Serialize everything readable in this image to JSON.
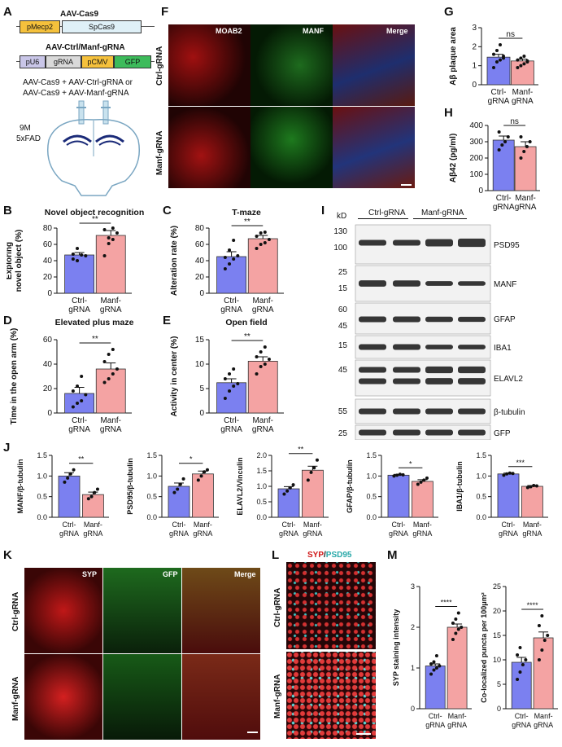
{
  "panel_letters": {
    "A": "A",
    "B": "B",
    "C": "C",
    "D": "D",
    "E": "E",
    "F": "F",
    "G": "G",
    "H": "H",
    "I": "I",
    "J": "J",
    "K": "K",
    "L": "L",
    "M": "M"
  },
  "panel_a": {
    "cas9_title": "AAV-Cas9",
    "promoter1": "pMecp2",
    "gene1": "SpCas9",
    "grna_title": "AAV-Ctrl/Manf-gRNA",
    "pu6": "pU6",
    "grna": "gRNA",
    "pcmv": "pCMV",
    "gfp": "GFP",
    "injection_line1": "AAV-Cas9 + AAV-Ctrl-gRNA or",
    "injection_line2": "AAV-Cas9 + AAV-Manf-gRNA",
    "age": "9M",
    "model": "5xFAD"
  },
  "groups": {
    "ctrl": [
      "Ctrl-",
      "gRNA"
    ],
    "manf": [
      "Manf-",
      "gRNA"
    ]
  },
  "colors": {
    "ctrl": "#7b80f0",
    "manf": "#f4a3a3"
  },
  "panel_f": {
    "ch1": "MOAB2",
    "ch2": "MANF",
    "ch3": "Merge",
    "row1": "Ctrl-gRNA",
    "row2": "Manf-gRNA"
  },
  "panel_i": {
    "kd": "kD",
    "ctrl": "Ctrl-gRNA",
    "manf": "Manf-gRNA",
    "markers": [
      "130",
      "100",
      "25",
      "15",
      "60",
      "45",
      "15",
      "45",
      "55",
      "25"
    ],
    "proteins": [
      "PSD95",
      "MANF",
      "GFAP",
      "IBA1",
      "ELAVL2",
      "β-tubulin",
      "GFP"
    ]
  },
  "panel_k": {
    "ch1": "SYP",
    "ch2": "GFP",
    "ch3": "Merge",
    "row1": "Ctrl-gRNA",
    "row2": "Manf-gRNA"
  },
  "panel_l": {
    "ch1": "SYP",
    "sep": "/",
    "ch2": "PSD95",
    "row1": "Ctrl-gRNA",
    "row2": "Manf-gRNA"
  },
  "chart_data": [
    {
      "id": "B",
      "type": "bar",
      "title": "Novel object recognition",
      "ylabel": "Exploring novel object (%)",
      "ylim": [
        0,
        80
      ],
      "ticks": [
        0,
        20,
        40,
        60,
        80
      ],
      "values": [
        47,
        71
      ],
      "sem": [
        3,
        6
      ],
      "sig": "**",
      "points": [
        [
          42,
          40,
          47,
          46,
          48,
          55
        ],
        [
          46,
          61,
          66,
          74,
          78,
          68,
          80
        ]
      ]
    },
    {
      "id": "C",
      "type": "bar",
      "title": "T-maze",
      "ylabel": "Alteration rate (%)",
      "ylim": [
        0,
        80
      ],
      "ticks": [
        0,
        20,
        40,
        60,
        80
      ],
      "values": [
        45,
        67
      ],
      "sem": [
        6,
        4
      ],
      "sig": "**",
      "points": [
        [
          30,
          36,
          42,
          46,
          44,
          53,
          65
        ],
        [
          55,
          60,
          62,
          66,
          70,
          74,
          75
        ]
      ]
    },
    {
      "id": "D",
      "type": "bar",
      "title": "Elevated plus maze",
      "ylabel": "Time in the open arm (%)",
      "ylim": [
        0,
        60
      ],
      "ticks": [
        0,
        20,
        40,
        60
      ],
      "values": [
        16,
        36
      ],
      "sem": [
        5,
        5
      ],
      "sig": "**",
      "points": [
        [
          5,
          8,
          10,
          15,
          18,
          22,
          30
        ],
        [
          25,
          28,
          32,
          36,
          42,
          48,
          52
        ]
      ]
    },
    {
      "id": "E",
      "type": "bar",
      "title": "Open field",
      "ylabel": "Activity in center (%)",
      "ylim": [
        0,
        15
      ],
      "ticks": [
        0,
        5,
        10,
        15
      ],
      "values": [
        6.2,
        10.6
      ],
      "sem": [
        0.8,
        0.9
      ],
      "sig": "**",
      "points": [
        [
          3,
          4.5,
          5.5,
          6,
          7,
          8,
          9
        ],
        [
          8,
          9.5,
          10,
          11,
          11.5,
          12.5,
          13.5
        ]
      ]
    },
    {
      "id": "G",
      "type": "bar",
      "title": "",
      "ylabel": "Aβ plaque area",
      "ylim": [
        0,
        3
      ],
      "ticks": [
        0,
        1,
        2,
        3
      ],
      "values": [
        1.45,
        1.25
      ],
      "sem": [
        0.15,
        0.1
      ],
      "sig": "ns",
      "points": [
        [
          0.9,
          1.2,
          1.3,
          1.5,
          1.6,
          1.8,
          2.1,
          1.4
        ],
        [
          0.9,
          1.0,
          1.1,
          1.2,
          1.3,
          1.4,
          1.5,
          1.25
        ]
      ]
    },
    {
      "id": "H",
      "type": "bar",
      "title": "",
      "ylabel": "Aβ42 (pg/ml)",
      "ylim": [
        0,
        400
      ],
      "ticks": [
        0,
        100,
        200,
        300,
        400
      ],
      "values": [
        310,
        270
      ],
      "sem": [
        25,
        30
      ],
      "sig": "ns",
      "points": [
        [
          250,
          280,
          300,
          330,
          360
        ],
        [
          200,
          240,
          270,
          300,
          330
        ]
      ]
    },
    {
      "id": "J1",
      "type": "bar",
      "title": "",
      "ylabel": "MANF/β-tubulin",
      "ylim": [
        0,
        1.5
      ],
      "ticks": [
        0,
        0.5,
        1.0,
        1.5
      ],
      "values": [
        1.0,
        0.55
      ],
      "sem": [
        0.08,
        0.06
      ],
      "sig": "**",
      "points": [
        [
          0.85,
          0.95,
          1.05,
          1.15
        ],
        [
          0.45,
          0.5,
          0.6,
          0.68
        ]
      ]
    },
    {
      "id": "J2",
      "type": "bar",
      "title": "",
      "ylabel": "PSD95/β-tubulin",
      "ylim": [
        0,
        1.5
      ],
      "ticks": [
        0,
        0.5,
        1.0,
        1.5
      ],
      "values": [
        0.75,
        1.05
      ],
      "sem": [
        0.08,
        0.07
      ],
      "sig": "*",
      "points": [
        [
          0.6,
          0.68,
          0.8,
          0.93
        ],
        [
          0.9,
          1.0,
          1.1,
          1.15
        ]
      ]
    },
    {
      "id": "J3",
      "type": "bar",
      "title": "",
      "ylabel": "ELAVL2/Vinculin",
      "ylim": [
        0,
        2.0
      ],
      "ticks": [
        0,
        0.5,
        1.0,
        1.5,
        2.0
      ],
      "values": [
        0.92,
        1.52
      ],
      "sem": [
        0.07,
        0.13
      ],
      "sig": "**",
      "points": [
        [
          0.75,
          0.85,
          0.95,
          1.05
        ],
        [
          1.2,
          1.45,
          1.6,
          1.85
        ]
      ]
    },
    {
      "id": "J4",
      "type": "bar",
      "title": "",
      "ylabel": "GFAP/β-tubulin",
      "ylim": [
        0,
        1.5
      ],
      "ticks": [
        0,
        0.5,
        1.0,
        1.5
      ],
      "values": [
        1.02,
        0.87
      ],
      "sem": [
        0.02,
        0.04
      ],
      "sig": "*",
      "points": [
        [
          1.0,
          1.02,
          1.04,
          1.03
        ],
        [
          0.8,
          0.85,
          0.9,
          0.95
        ]
      ]
    },
    {
      "id": "J5",
      "type": "bar",
      "title": "",
      "ylabel": "IBA1/β-tubulin",
      "ylim": [
        0,
        1.5
      ],
      "ticks": [
        0,
        0.5,
        1.0,
        1.5
      ],
      "values": [
        1.05,
        0.75
      ],
      "sem": [
        0.02,
        0.02
      ],
      "sig": "***",
      "points": [
        [
          1.02,
          1.05,
          1.07,
          1.06
        ],
        [
          0.72,
          0.74,
          0.77,
          0.76
        ]
      ]
    },
    {
      "id": "M1",
      "type": "bar",
      "title": "",
      "ylabel": "SYP staining intensity",
      "ylim": [
        0,
        3
      ],
      "ticks": [
        0,
        1,
        2,
        3
      ],
      "values": [
        1.05,
        2.0
      ],
      "sem": [
        0.05,
        0.08
      ],
      "sig": "****",
      "points": [
        [
          0.85,
          0.95,
          1.0,
          1.05,
          1.1,
          1.15,
          1.3
        ],
        [
          1.7,
          1.85,
          1.95,
          2.0,
          2.1,
          2.2,
          2.35
        ]
      ]
    },
    {
      "id": "M2",
      "type": "bar",
      "title": "",
      "ylabel": "Co-localized puncta per 100μm²",
      "ylim": [
        0,
        25
      ],
      "ticks": [
        0,
        5,
        10,
        15,
        20,
        25
      ],
      "values": [
        9.5,
        14.5
      ],
      "sem": [
        1.0,
        1.2
      ],
      "sig": "****",
      "points": [
        [
          6,
          7.5,
          9,
          10,
          11,
          12.5
        ],
        [
          10,
          12,
          14,
          15,
          17,
          19
        ]
      ]
    }
  ]
}
